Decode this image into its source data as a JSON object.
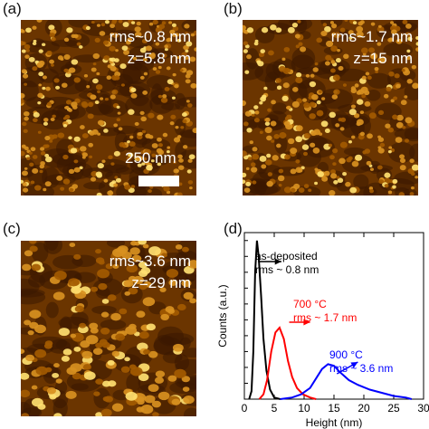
{
  "panels": {
    "a": {
      "label": "(a)",
      "rms": "rms~0.8 nm",
      "z": "z=5.8 nm",
      "scalebar": "250 nm"
    },
    "b": {
      "label": "(b)",
      "rms": "rms~1.7 nm",
      "z": "z=15 nm"
    },
    "c": {
      "label": "(c)",
      "rms": "rms~3.6 nm",
      "z": "z=29 nm"
    },
    "d": {
      "label": "(d)"
    }
  },
  "afm_colormap": [
    "#3a1800",
    "#6b3500",
    "#a35a00",
    "#d89020",
    "#ffe070"
  ],
  "chart_data": {
    "type": "line",
    "xlabel": "Height (nm)",
    "ylabel": "Counts (a.u.)",
    "xlim": [
      0,
      30
    ],
    "xticks": [
      0,
      5,
      10,
      15,
      20,
      25,
      30
    ],
    "xtick_labels": [
      "0",
      "5",
      "10",
      "15",
      "20",
      "25",
      "30"
    ],
    "ylim": [
      0,
      1.05
    ],
    "series": [
      {
        "color": "#000000",
        "annotation": [
          "as-deposited",
          "rms ~ 0.8 nm"
        ],
        "points": [
          [
            0.8,
            0
          ],
          [
            1.2,
            0.05
          ],
          [
            1.5,
            0.3
          ],
          [
            1.8,
            0.8
          ],
          [
            2.1,
            1.0
          ],
          [
            2.4,
            0.9
          ],
          [
            2.8,
            0.65
          ],
          [
            3.2,
            0.38
          ],
          [
            3.7,
            0.18
          ],
          [
            4.3,
            0.06
          ],
          [
            5,
            0.01
          ],
          [
            6,
            0
          ]
        ]
      },
      {
        "color": "#ff0000",
        "annotation": [
          "700 °C",
          "rms ~ 1.7 nm"
        ],
        "points": [
          [
            2.5,
            0
          ],
          [
            3.2,
            0.03
          ],
          [
            3.8,
            0.12
          ],
          [
            4.5,
            0.3
          ],
          [
            5.2,
            0.42
          ],
          [
            5.9,
            0.45
          ],
          [
            6.6,
            0.38
          ],
          [
            7.3,
            0.24
          ],
          [
            8,
            0.14
          ],
          [
            8.8,
            0.07
          ],
          [
            9.8,
            0.03
          ],
          [
            11,
            0.01
          ],
          [
            12,
            0
          ]
        ]
      },
      {
        "color": "#0000ff",
        "annotation": [
          "900 °C",
          "rms ~ 3.6 nm"
        ],
        "points": [
          [
            6,
            0
          ],
          [
            8,
            0.01
          ],
          [
            9.5,
            0.03
          ],
          [
            11,
            0.07
          ],
          [
            12,
            0.13
          ],
          [
            13,
            0.19
          ],
          [
            14,
            0.22
          ],
          [
            15,
            0.21
          ],
          [
            16,
            0.17
          ],
          [
            17.5,
            0.12
          ],
          [
            19,
            0.09
          ],
          [
            21,
            0.06
          ],
          [
            23,
            0.04
          ],
          [
            25,
            0.02
          ],
          [
            27,
            0.01
          ],
          [
            28,
            0
          ]
        ]
      }
    ]
  }
}
